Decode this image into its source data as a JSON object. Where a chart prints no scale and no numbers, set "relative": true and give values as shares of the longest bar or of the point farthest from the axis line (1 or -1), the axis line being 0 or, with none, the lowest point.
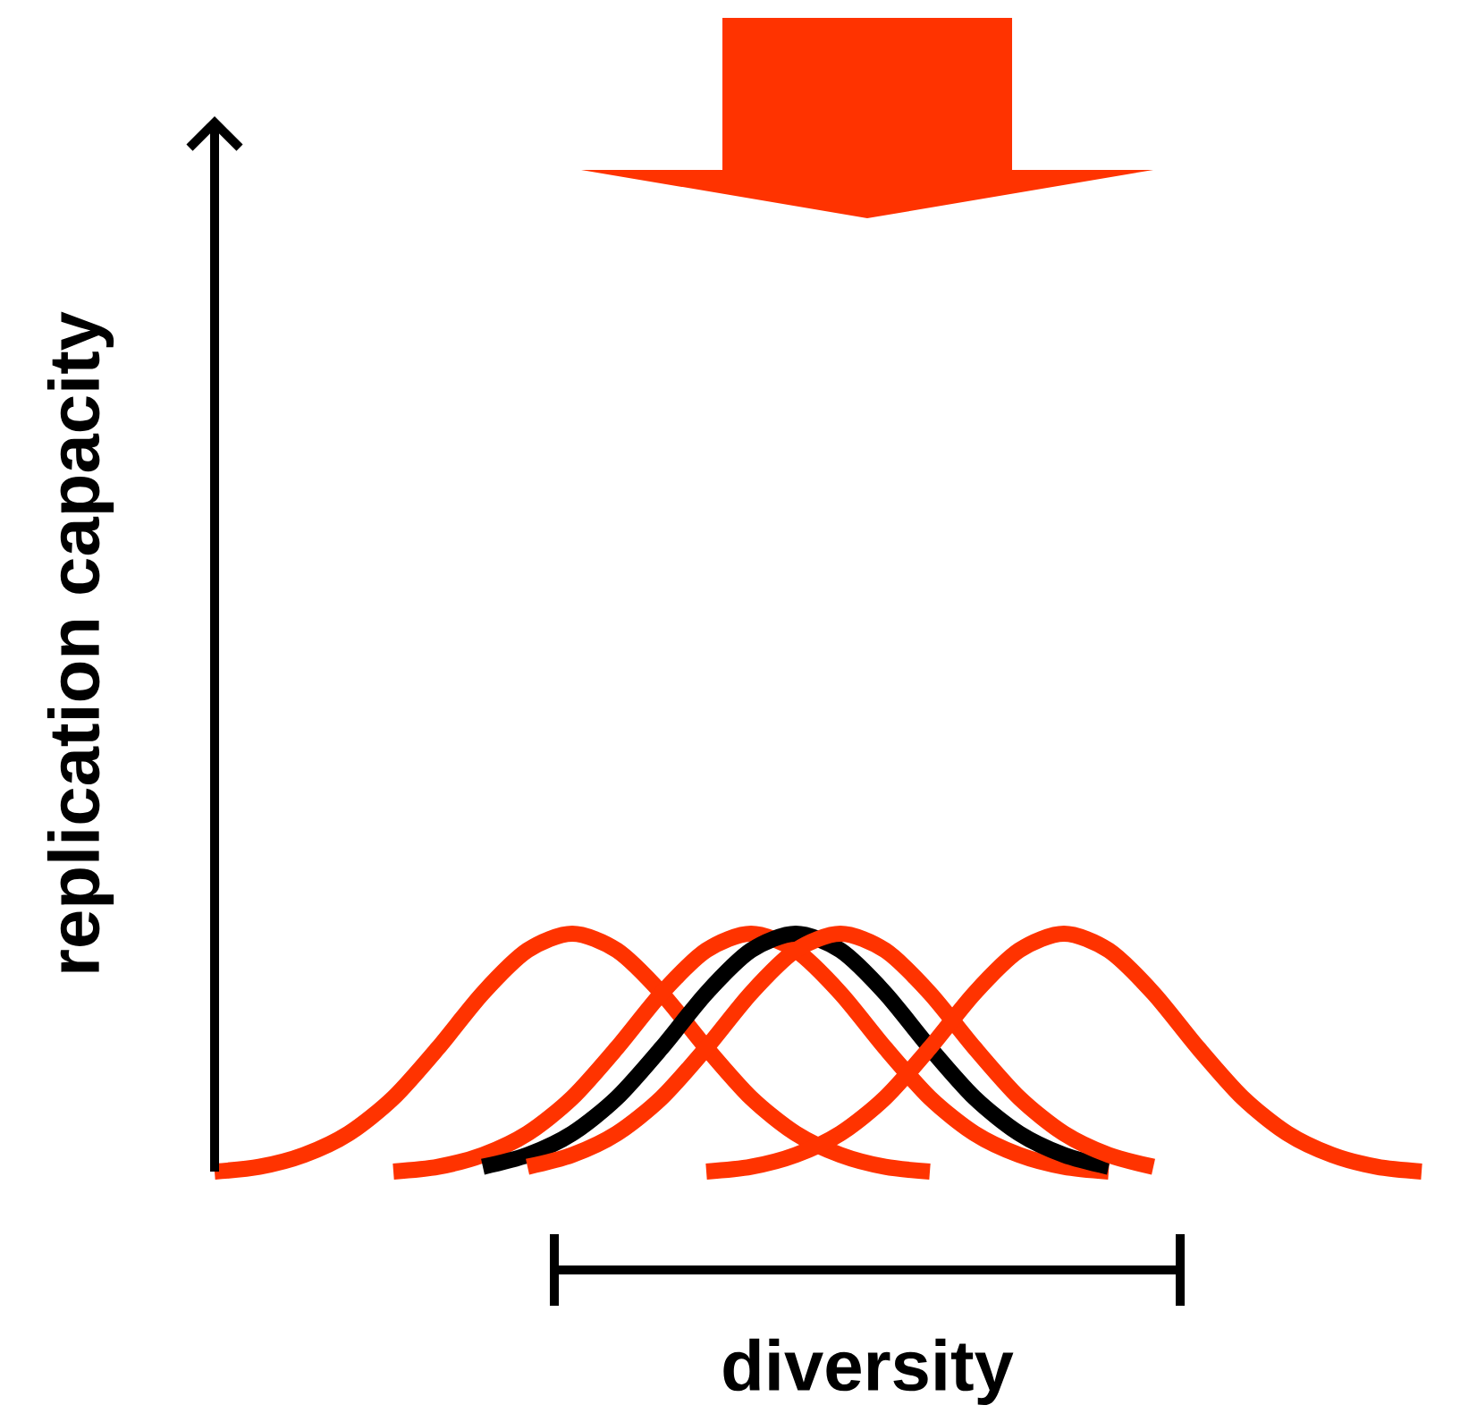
{
  "chart_data": {
    "type": "line",
    "relative": true,
    "xlabel": "diversity",
    "ylabel": "replication capacity",
    "categories": [
      null,
      null,
      null,
      null,
      null,
      null,
      null,
      null,
      null,
      null,
      null,
      null,
      null,
      null,
      null,
      null,
      null,
      null,
      null,
      null,
      null,
      null,
      null,
      null,
      null,
      null,
      null,
      null
    ],
    "series": [
      {
        "color": "#ff3300",
        "values": [
          0,
          0.02,
          0.07,
          0.16,
          0.31,
          0.52,
          0.75,
          0.93,
          1,
          0.93,
          0.75,
          0.52,
          0.31,
          0.16,
          0.07,
          0.02,
          0,
          null,
          null,
          null,
          null,
          null,
          null,
          null,
          null,
          null,
          null,
          null
        ]
      },
      {
        "color": "#ff3300",
        "values": [
          null,
          null,
          null,
          null,
          0,
          0.02,
          0.07,
          0.16,
          0.31,
          0.52,
          0.75,
          0.93,
          1,
          0.93,
          0.75,
          0.52,
          0.31,
          0.16,
          0.07,
          0.02,
          0,
          null,
          null,
          null,
          null,
          null,
          null,
          null
        ]
      },
      {
        "color": "#000000",
        "values": [
          null,
          null,
          null,
          null,
          null,
          null,
          0.02,
          0.07,
          0.16,
          0.31,
          0.52,
          0.75,
          0.93,
          1,
          0.93,
          0.75,
          0.52,
          0.31,
          0.16,
          0.07,
          0.02,
          null,
          null,
          null,
          null,
          null,
          null,
          null
        ]
      },
      {
        "color": "#ff3300",
        "values": [
          null,
          null,
          null,
          null,
          null,
          null,
          null,
          0.02,
          0.07,
          0.16,
          0.31,
          0.52,
          0.75,
          0.93,
          1,
          0.93,
          0.75,
          0.52,
          0.31,
          0.16,
          0.07,
          0.02,
          null,
          null,
          null,
          null,
          null,
          null
        ]
      },
      {
        "color": "#ff3300",
        "values": [
          null,
          null,
          null,
          null,
          null,
          null,
          null,
          null,
          null,
          null,
          null,
          0,
          0.02,
          0.07,
          0.16,
          0.31,
          0.52,
          0.75,
          0.93,
          1,
          0.93,
          0.75,
          0.52,
          0.31,
          0.16,
          0.07,
          0.02,
          0
        ]
      }
    ]
  }
}
